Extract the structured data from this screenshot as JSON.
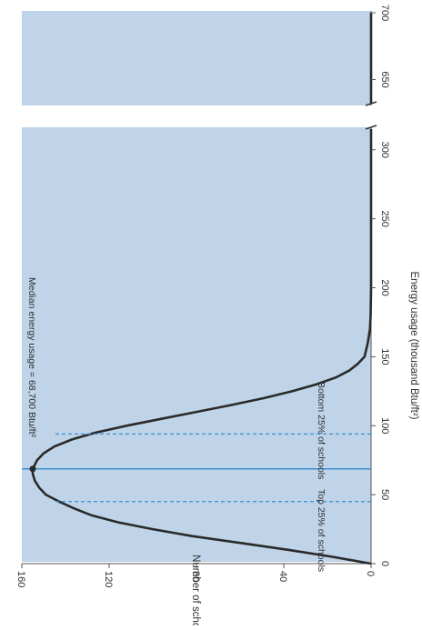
{
  "chart_data": {
    "type": "area",
    "orientation": "rotated-90-clockwise",
    "xlabel": "Energy usage (thousand Btu/ft²)",
    "ylabel": "Number of schools",
    "x_ticks": [
      "0",
      "50",
      "100",
      "150",
      "200",
      "250",
      "300",
      "650",
      "700"
    ],
    "y_ticks": [
      "0",
      "40",
      "80",
      "120",
      "160"
    ],
    "xlim": [
      0,
      700
    ],
    "axis_break": [
      315,
      632
    ],
    "ylim": [
      0,
      160
    ],
    "grid": false,
    "colors": {
      "panel": "#bfd4e8",
      "curve": "#2a2a2a",
      "median_line": "#3b8fd0",
      "quartile_lines": "#3b8fd0"
    },
    "series": [
      {
        "x": [
          0,
          5,
          10,
          15,
          20,
          25,
          30,
          35,
          40,
          45,
          50,
          55,
          60,
          65,
          68.7,
          75,
          80,
          85,
          90,
          95,
          100,
          105,
          110,
          115,
          120,
          125,
          130,
          135,
          140,
          145,
          150,
          160,
          170,
          180,
          200,
          250,
          300,
          315,
          632,
          650,
          675,
          700
        ],
        "values": [
          0,
          18,
          38,
          60,
          82,
          100,
          116,
          128,
          136,
          143,
          149,
          152,
          154,
          155,
          155,
          153,
          150,
          145,
          137,
          126,
          112,
          96,
          80,
          64,
          49,
          36,
          25,
          16,
          10,
          6,
          3,
          1.5,
          0.5,
          0.2,
          0,
          0,
          0,
          0,
          0,
          0,
          0,
          0
        ]
      }
    ],
    "reference_lines": [
      {
        "x": 68.7,
        "label": "Median energy usage = 68,700 Btu/ft²",
        "style": "solid"
      },
      {
        "x": 45,
        "label": "Top 25% of schools",
        "style": "dashed"
      },
      {
        "x": 94,
        "label": "Bottom 25% of schools",
        "style": "dashed"
      }
    ]
  }
}
